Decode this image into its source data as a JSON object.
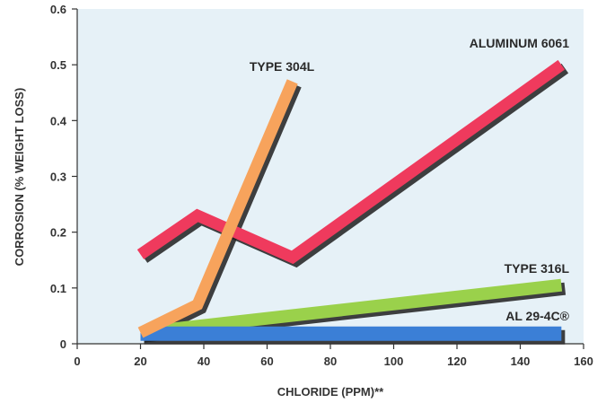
{
  "chart_data": {
    "type": "line",
    "title": "",
    "xlabel": "CHLORIDE (PPM)**",
    "ylabel": "CORROSION (% WEIGHT LOSS)",
    "xlim": [
      0,
      160
    ],
    "ylim": [
      0,
      0.6
    ],
    "x_ticks": [
      0,
      20,
      40,
      60,
      80,
      100,
      120,
      140,
      160
    ],
    "y_ticks": [
      0,
      0.1,
      0.2,
      0.3,
      0.4,
      0.5,
      0.6
    ],
    "y_tick_labels": [
      "0",
      "0.1",
      "0.2",
      "0.3",
      "0.4",
      "0.5",
      "0.6"
    ],
    "grid": false,
    "background": "#e6f1f7",
    "series": [
      {
        "name": "TYPE 304L",
        "color": "#f7a35c",
        "points": [
          [
            20,
            0.02
          ],
          [
            38,
            0.07
          ],
          [
            68,
            0.47
          ]
        ]
      },
      {
        "name": "ALUMINUM 6061",
        "color": "#ef3a5d",
        "points": [
          [
            20,
            0.16
          ],
          [
            38,
            0.23
          ],
          [
            68,
            0.155
          ],
          [
            153,
            0.5
          ]
        ]
      },
      {
        "name": "TYPE 316L",
        "color": "#9ad14b",
        "points": [
          [
            20,
            0.02
          ],
          [
            153,
            0.105
          ]
        ]
      },
      {
        "name": "AL 29-4C®",
        "color": "#3b7fd6",
        "points": [
          [
            20,
            0.018
          ],
          [
            153,
            0.018
          ]
        ]
      }
    ]
  }
}
